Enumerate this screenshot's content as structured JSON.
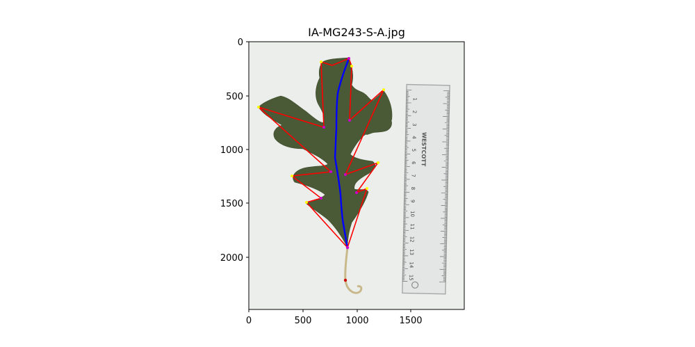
{
  "title": "IA-MG243-S-A.jpg",
  "axes": {
    "x_ticks": [
      "0",
      "500",
      "1000",
      "1500"
    ],
    "y_ticks": [
      "0",
      "500",
      "1000",
      "1500",
      "2000"
    ],
    "x_range": [
      0,
      1992
    ],
    "y_range": [
      2480,
      0
    ]
  },
  "colors": {
    "outline": "#ff0000",
    "midrib": "#0000ff",
    "lobe_tip": "#ffff00",
    "sinus": "#cc00cc",
    "leaf": "#4a5a35",
    "background": "#eeeeec"
  },
  "ruler_numbers": [
    "1",
    "2",
    "3",
    "4",
    "5",
    "6",
    "7",
    "8",
    "9",
    "10",
    "11",
    "12",
    "13",
    "14",
    "15"
  ],
  "ruler_brand": "WESTCOTT"
}
